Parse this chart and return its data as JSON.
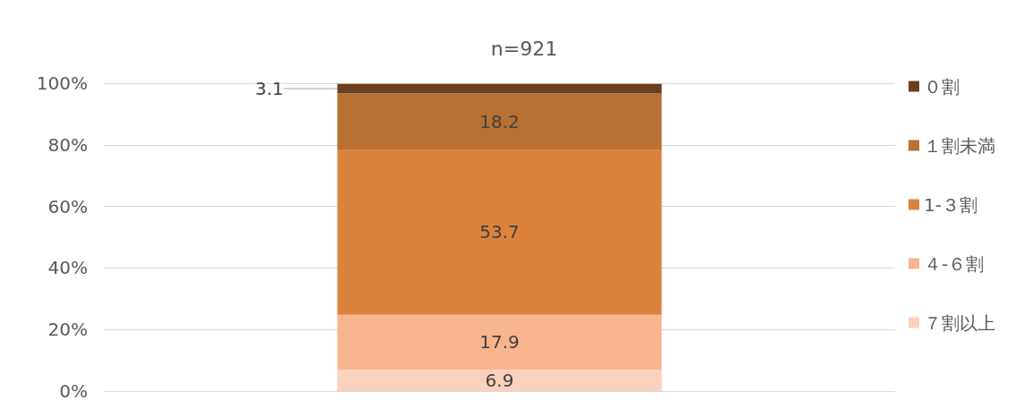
{
  "chart_data": {
    "type": "bar",
    "title": "n=921",
    "stacked": true,
    "categories": [
      null
    ],
    "series": [
      {
        "name": "７割以上",
        "color": "#fbd0bc",
        "values": [
          6.9
        ]
      },
      {
        "name": "４-６割",
        "color": "#f8b48f",
        "values": [
          17.9
        ]
      },
      {
        "name": "1-３割",
        "color": "#db833d",
        "values": [
          53.7
        ]
      },
      {
        "name": "１割未満",
        "color": "#b87033",
        "values": [
          18.2
        ]
      },
      {
        "name": "０割",
        "color": "#6b3f1f",
        "values": [
          3.1
        ]
      }
    ],
    "ylim": [
      0,
      100
    ],
    "yticks": [
      {
        "value": 0,
        "label": "0%"
      },
      {
        "value": 20,
        "label": "20%"
      },
      {
        "value": 40,
        "label": "40%"
      },
      {
        "value": 60,
        "label": "60%"
      },
      {
        "value": 80,
        "label": "80%"
      },
      {
        "value": 100,
        "label": "100%"
      }
    ],
    "grid": "y",
    "legend": "right",
    "data_labels": true
  }
}
